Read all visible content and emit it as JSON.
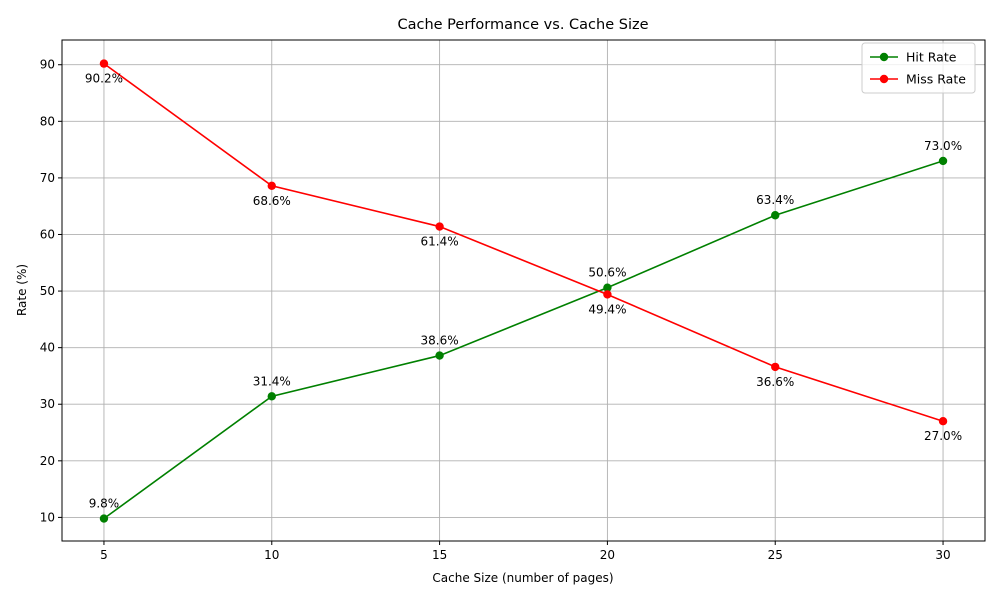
{
  "chart_data": {
    "type": "line",
    "title": "Cache Performance vs. Cache Size",
    "xlabel": "Cache Size (number of pages)",
    "ylabel": "Rate (%)",
    "x": [
      5,
      10,
      15,
      20,
      25,
      30
    ],
    "xticks": [
      5,
      10,
      15,
      20,
      25,
      30
    ],
    "yticks": [
      10,
      20,
      30,
      40,
      50,
      60,
      70,
      80,
      90
    ],
    "xlim": [
      3.75,
      31.25
    ],
    "ylim": [
      5.83,
      94.37
    ],
    "grid": true,
    "legend_position": "top-right",
    "series": [
      {
        "name": "Hit Rate",
        "color": "#008000",
        "values": [
          9.8,
          31.4,
          38.6,
          50.6,
          63.4,
          73.0
        ],
        "labels": [
          "9.8%",
          "31.4%",
          "38.6%",
          "50.6%",
          "63.4%",
          "73.0%"
        ],
        "label_side": "above"
      },
      {
        "name": "Miss Rate",
        "color": "#ff0000",
        "values": [
          90.2,
          68.6,
          61.4,
          49.4,
          36.6,
          27.0
        ],
        "labels": [
          "90.2%",
          "68.6%",
          "61.4%",
          "49.4%",
          "36.6%",
          "27.0%"
        ],
        "label_side": "below"
      }
    ]
  }
}
